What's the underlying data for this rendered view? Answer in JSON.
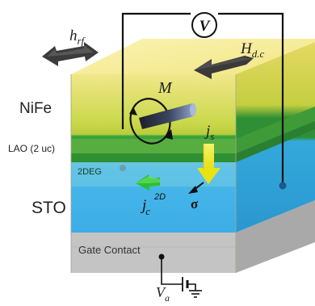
{
  "diagram": {
    "layers": {
      "top_label": "NiFe",
      "lao_label": "LAO (2 uc)",
      "twodeg_label": "2DEG",
      "sto_label": "STO",
      "gate_label": "Gate Contact"
    },
    "voltmeter": {
      "symbol": "V"
    },
    "fields": {
      "rf_main": "h",
      "rf_sub": "rf",
      "dc_main": "H",
      "dc_sub": "d.c",
      "magnetization": "M"
    },
    "currents": {
      "spin_main": "j",
      "spin_sub": "s",
      "charge_main": "j",
      "charge_sub": "c",
      "charge_sup": "2D",
      "sigma": "σ"
    },
    "gate_voltage": {
      "main": "V",
      "sub": "a"
    },
    "colors": {
      "nife_top": "#f7ee9a",
      "nife_side": "#e8da6e",
      "lao": "#4fa73e",
      "sto": "#3fb6ea",
      "gate": "#c6c6c6",
      "arrow_dark": "#3d3d3d",
      "spin_arrow": "#f3ee1c",
      "charge_arrow": "#2fbf34"
    }
  }
}
